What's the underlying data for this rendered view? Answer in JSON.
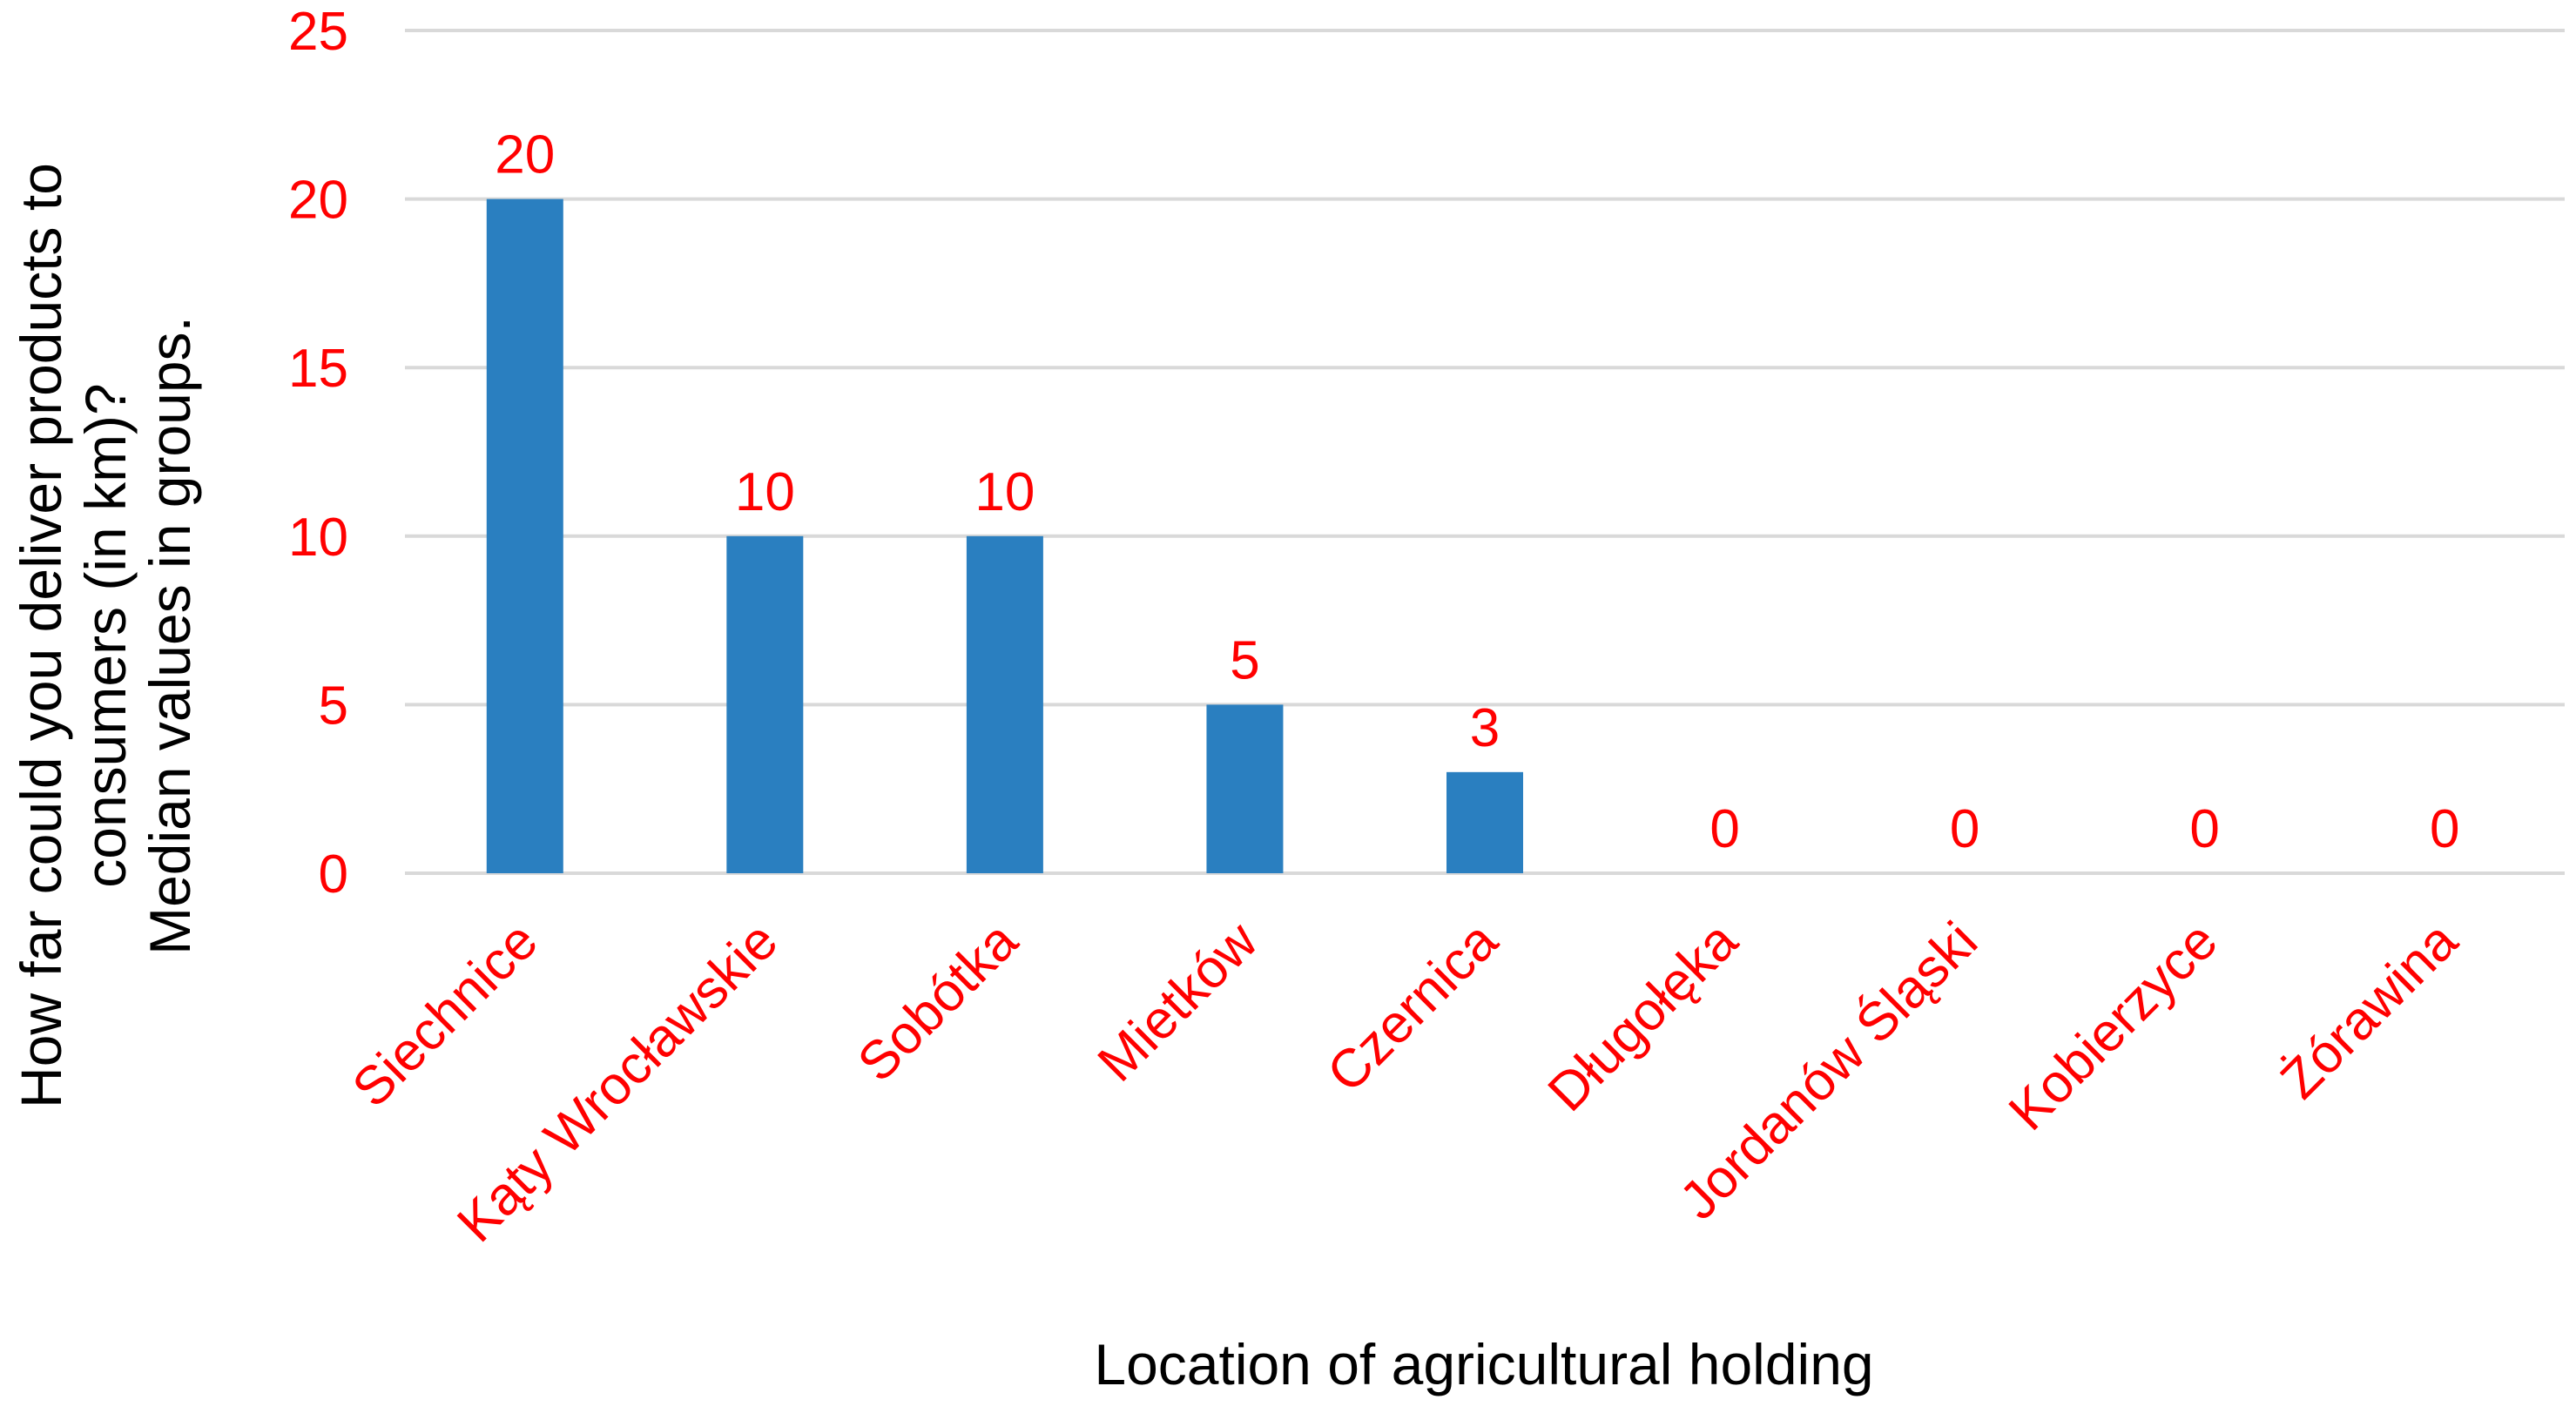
{
  "chart_data": {
    "type": "bar",
    "categories": [
      "Siechnice",
      "Kąty Wrocławskie",
      "Sobótka",
      "Mietków",
      "Czernica",
      "Długołęka",
      "Jordanów Śląski",
      "Kobierzyce",
      "Żórawina"
    ],
    "values": [
      20,
      10,
      10,
      5,
      3,
      0,
      0,
      0,
      0
    ],
    "xlabel": "Location of agricultural holding",
    "ylabel_lines": [
      "How far could you deliver products to",
      "consumers (in km)?",
      "Median values in groups."
    ],
    "ylim": [
      0,
      25
    ],
    "yticks": [
      0,
      5,
      10,
      15,
      20,
      25
    ],
    "grid": true,
    "legend": "none",
    "colors": {
      "bar": "#2a7fc0",
      "text": "#ff0000",
      "grid": "#d9d9d9"
    }
  }
}
